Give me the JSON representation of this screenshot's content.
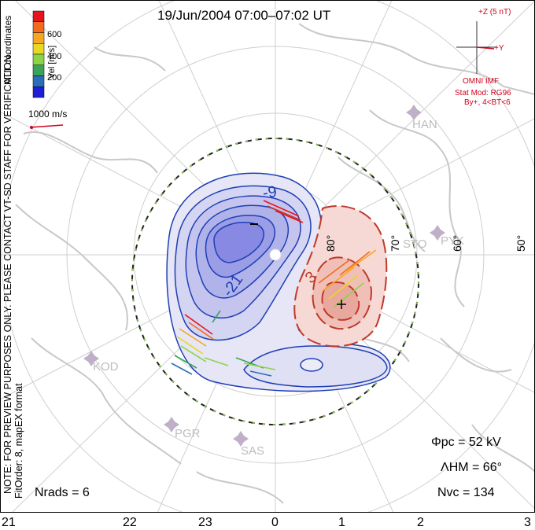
{
  "title": "19/Jun/2004 07:00–07:02 UT",
  "colorbar": {
    "unit_label": "Vel [m/s]",
    "ticks": [
      "600",
      "400",
      "200"
    ],
    "colors": [
      "#e8141c",
      "#f26a1e",
      "#f5a623",
      "#e8d821",
      "#8bd448",
      "#3aa35a",
      "#2a6eb8",
      "#1f1fd6"
    ]
  },
  "side_text": {
    "coords": "MLT coordinates",
    "preview_note": "NOTE: FOR PREVIEW PURPOSES ONLY. PLEASE CONTACT VT-SD STAFF FOR VERIFICATION.",
    "fit_order": "FitOrder: 8, mapEX format"
  },
  "vector_scale": "1000 m/s",
  "imf": {
    "z_label": "+Z (5 nT)",
    "y_label": "+Y",
    "source": "OMNI IMF",
    "model": "Stat Mod: RG96",
    "condition": "By+, 4<BT<6"
  },
  "stations": [
    "HAN",
    "STO",
    "PYK",
    "KOD",
    "PGR",
    "SAS"
  ],
  "latitude_labels": [
    "80°",
    "70°",
    "60°",
    "50°"
  ],
  "contour_labels": [
    "-9",
    "-21",
    "3"
  ],
  "potential_markers": {
    "min": "–",
    "max": "+"
  },
  "stats": {
    "phi_pc": "Φpc = 52 kV",
    "lambda_hm": "ΛHM = 66°",
    "n_vc": "Nvc = 134",
    "n_rads": "Nrads = 6"
  },
  "mlt_ticks": [
    "21",
    "22",
    "23",
    "0",
    "1",
    "2",
    "3"
  ]
}
